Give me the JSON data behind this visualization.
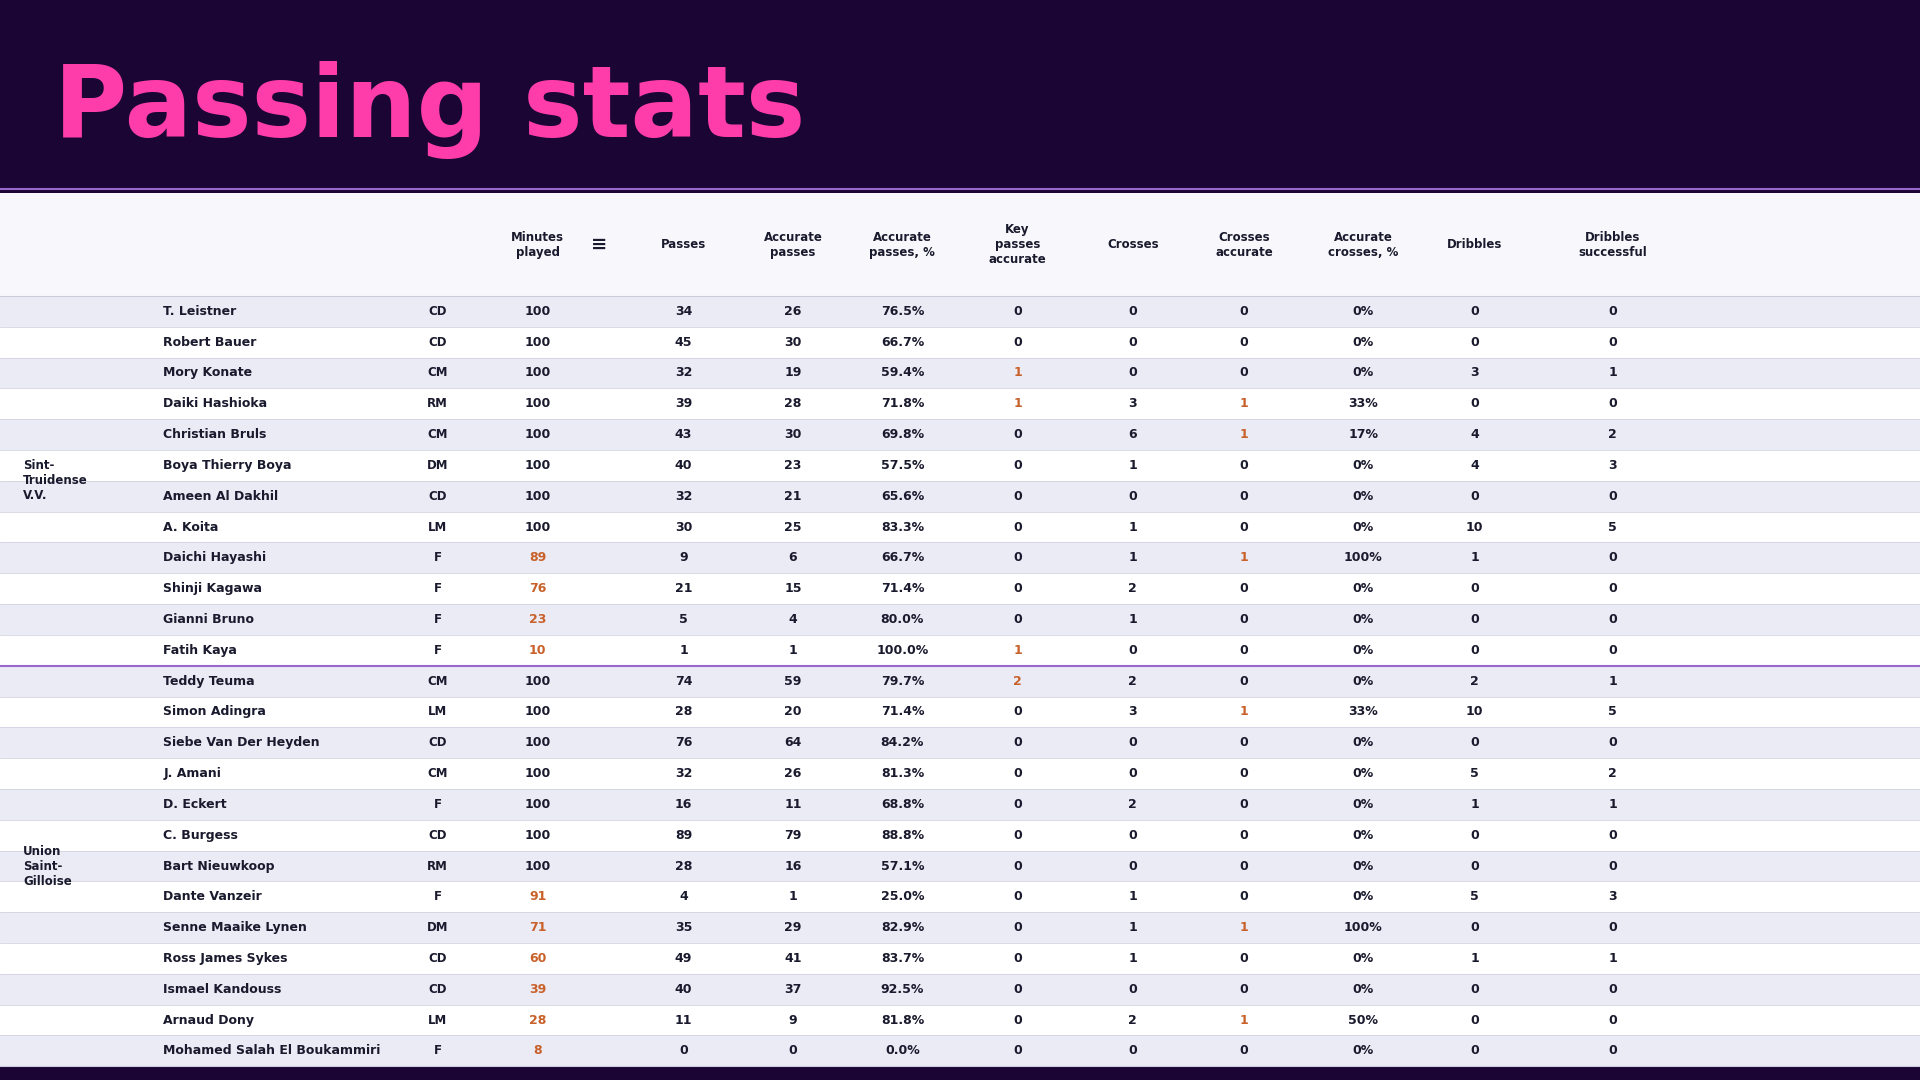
{
  "title": "Passing stats",
  "bg_color": "#1a0535",
  "table_bg": "#ffffff",
  "table_row_alt": "#f0f0f5",
  "title_color": "#FF3DAA",
  "text_color": "#1a1a2e",
  "header_text_color": "#1a1a2e",
  "highlight_color": "#c8612a",
  "team_label_color": "#1a1a2e",
  "divider_color": "#ccccdd",
  "team1": "Sint-\nTruidense\nV.V.",
  "team2": "Union\nSaint-\nGilloise",
  "rows": [
    [
      "T. Leistner",
      "CD",
      "100",
      "34",
      "26",
      "76.5%",
      "0",
      "0",
      "0",
      "0%",
      "0",
      "0"
    ],
    [
      "Robert Bauer",
      "CD",
      "100",
      "45",
      "30",
      "66.7%",
      "0",
      "0",
      "0",
      "0%",
      "0",
      "0"
    ],
    [
      "Mory Konate",
      "CM",
      "100",
      "32",
      "19",
      "59.4%",
      "1",
      "0",
      "0",
      "0%",
      "3",
      "1"
    ],
    [
      "Daiki Hashioka",
      "RM",
      "100",
      "39",
      "28",
      "71.8%",
      "1",
      "3",
      "1",
      "33%",
      "0",
      "0"
    ],
    [
      "Christian Bruls",
      "CM",
      "100",
      "43",
      "30",
      "69.8%",
      "0",
      "6",
      "1",
      "17%",
      "4",
      "2"
    ],
    [
      "Boya Thierry Boya",
      "DM",
      "100",
      "40",
      "23",
      "57.5%",
      "0",
      "1",
      "0",
      "0%",
      "4",
      "3"
    ],
    [
      "Ameen Al Dakhil",
      "CD",
      "100",
      "32",
      "21",
      "65.6%",
      "0",
      "0",
      "0",
      "0%",
      "0",
      "0"
    ],
    [
      "A. Koita",
      "LM",
      "100",
      "30",
      "25",
      "83.3%",
      "0",
      "1",
      "0",
      "0%",
      "10",
      "5"
    ],
    [
      "Daichi Hayashi",
      "F",
      "89",
      "9",
      "6",
      "66.7%",
      "0",
      "1",
      "1",
      "100%",
      "1",
      "0"
    ],
    [
      "Shinji Kagawa",
      "F",
      "76",
      "21",
      "15",
      "71.4%",
      "0",
      "2",
      "0",
      "0%",
      "0",
      "0"
    ],
    [
      "Gianni Bruno",
      "F",
      "23",
      "5",
      "4",
      "80.0%",
      "0",
      "1",
      "0",
      "0%",
      "0",
      "0"
    ],
    [
      "Fatih Kaya",
      "F",
      "10",
      "1",
      "1",
      "100.0%",
      "1",
      "0",
      "0",
      "0%",
      "0",
      "0"
    ],
    [
      "Teddy Teuma",
      "CM",
      "100",
      "74",
      "59",
      "79.7%",
      "2",
      "2",
      "0",
      "0%",
      "2",
      "1"
    ],
    [
      "Simon Adingra",
      "LM",
      "100",
      "28",
      "20",
      "71.4%",
      "0",
      "3",
      "1",
      "33%",
      "10",
      "5"
    ],
    [
      "Siebe Van Der Heyden",
      "CD",
      "100",
      "76",
      "64",
      "84.2%",
      "0",
      "0",
      "0",
      "0%",
      "0",
      "0"
    ],
    [
      "J. Amani",
      "CM",
      "100",
      "32",
      "26",
      "81.3%",
      "0",
      "0",
      "0",
      "0%",
      "5",
      "2"
    ],
    [
      "D. Eckert",
      "F",
      "100",
      "16",
      "11",
      "68.8%",
      "0",
      "2",
      "0",
      "0%",
      "1",
      "1"
    ],
    [
      "C. Burgess",
      "CD",
      "100",
      "89",
      "79",
      "88.8%",
      "0",
      "0",
      "0",
      "0%",
      "0",
      "0"
    ],
    [
      "Bart Nieuwkoop",
      "RM",
      "100",
      "28",
      "16",
      "57.1%",
      "0",
      "0",
      "0",
      "0%",
      "0",
      "0"
    ],
    [
      "Dante Vanzeir",
      "F",
      "91",
      "4",
      "1",
      "25.0%",
      "0",
      "1",
      "0",
      "0%",
      "5",
      "3"
    ],
    [
      "Senne Maaike Lynen",
      "DM",
      "71",
      "35",
      "29",
      "82.9%",
      "0",
      "1",
      "1",
      "100%",
      "0",
      "0"
    ],
    [
      "Ross James Sykes",
      "CD",
      "60",
      "49",
      "41",
      "83.7%",
      "0",
      "1",
      "0",
      "0%",
      "1",
      "1"
    ],
    [
      "Ismael Kandouss",
      "CD",
      "39",
      "40",
      "37",
      "92.5%",
      "0",
      "0",
      "0",
      "0%",
      "0",
      "0"
    ],
    [
      "Arnaud Dony",
      "LM",
      "28",
      "11",
      "9",
      "81.8%",
      "0",
      "2",
      "1",
      "50%",
      "0",
      "0"
    ],
    [
      "Mohamed Salah El Boukammiri",
      "F",
      "8",
      "0",
      "0",
      "0.0%",
      "0",
      "0",
      "0",
      "0%",
      "0",
      "0"
    ]
  ],
  "team1_rows": 12,
  "team2_rows": 13,
  "header_cols": [
    "Minutes\nplayed",
    "≡",
    "Passes",
    "Accurate\npasses",
    "Accurate\npasses, %",
    "Key\npasses\naccurate",
    "Crosses",
    "Crosses\naccurate",
    "Accurate\ncrosses, %",
    "Dribbles",
    "Dribbles\nsuccessful"
  ]
}
